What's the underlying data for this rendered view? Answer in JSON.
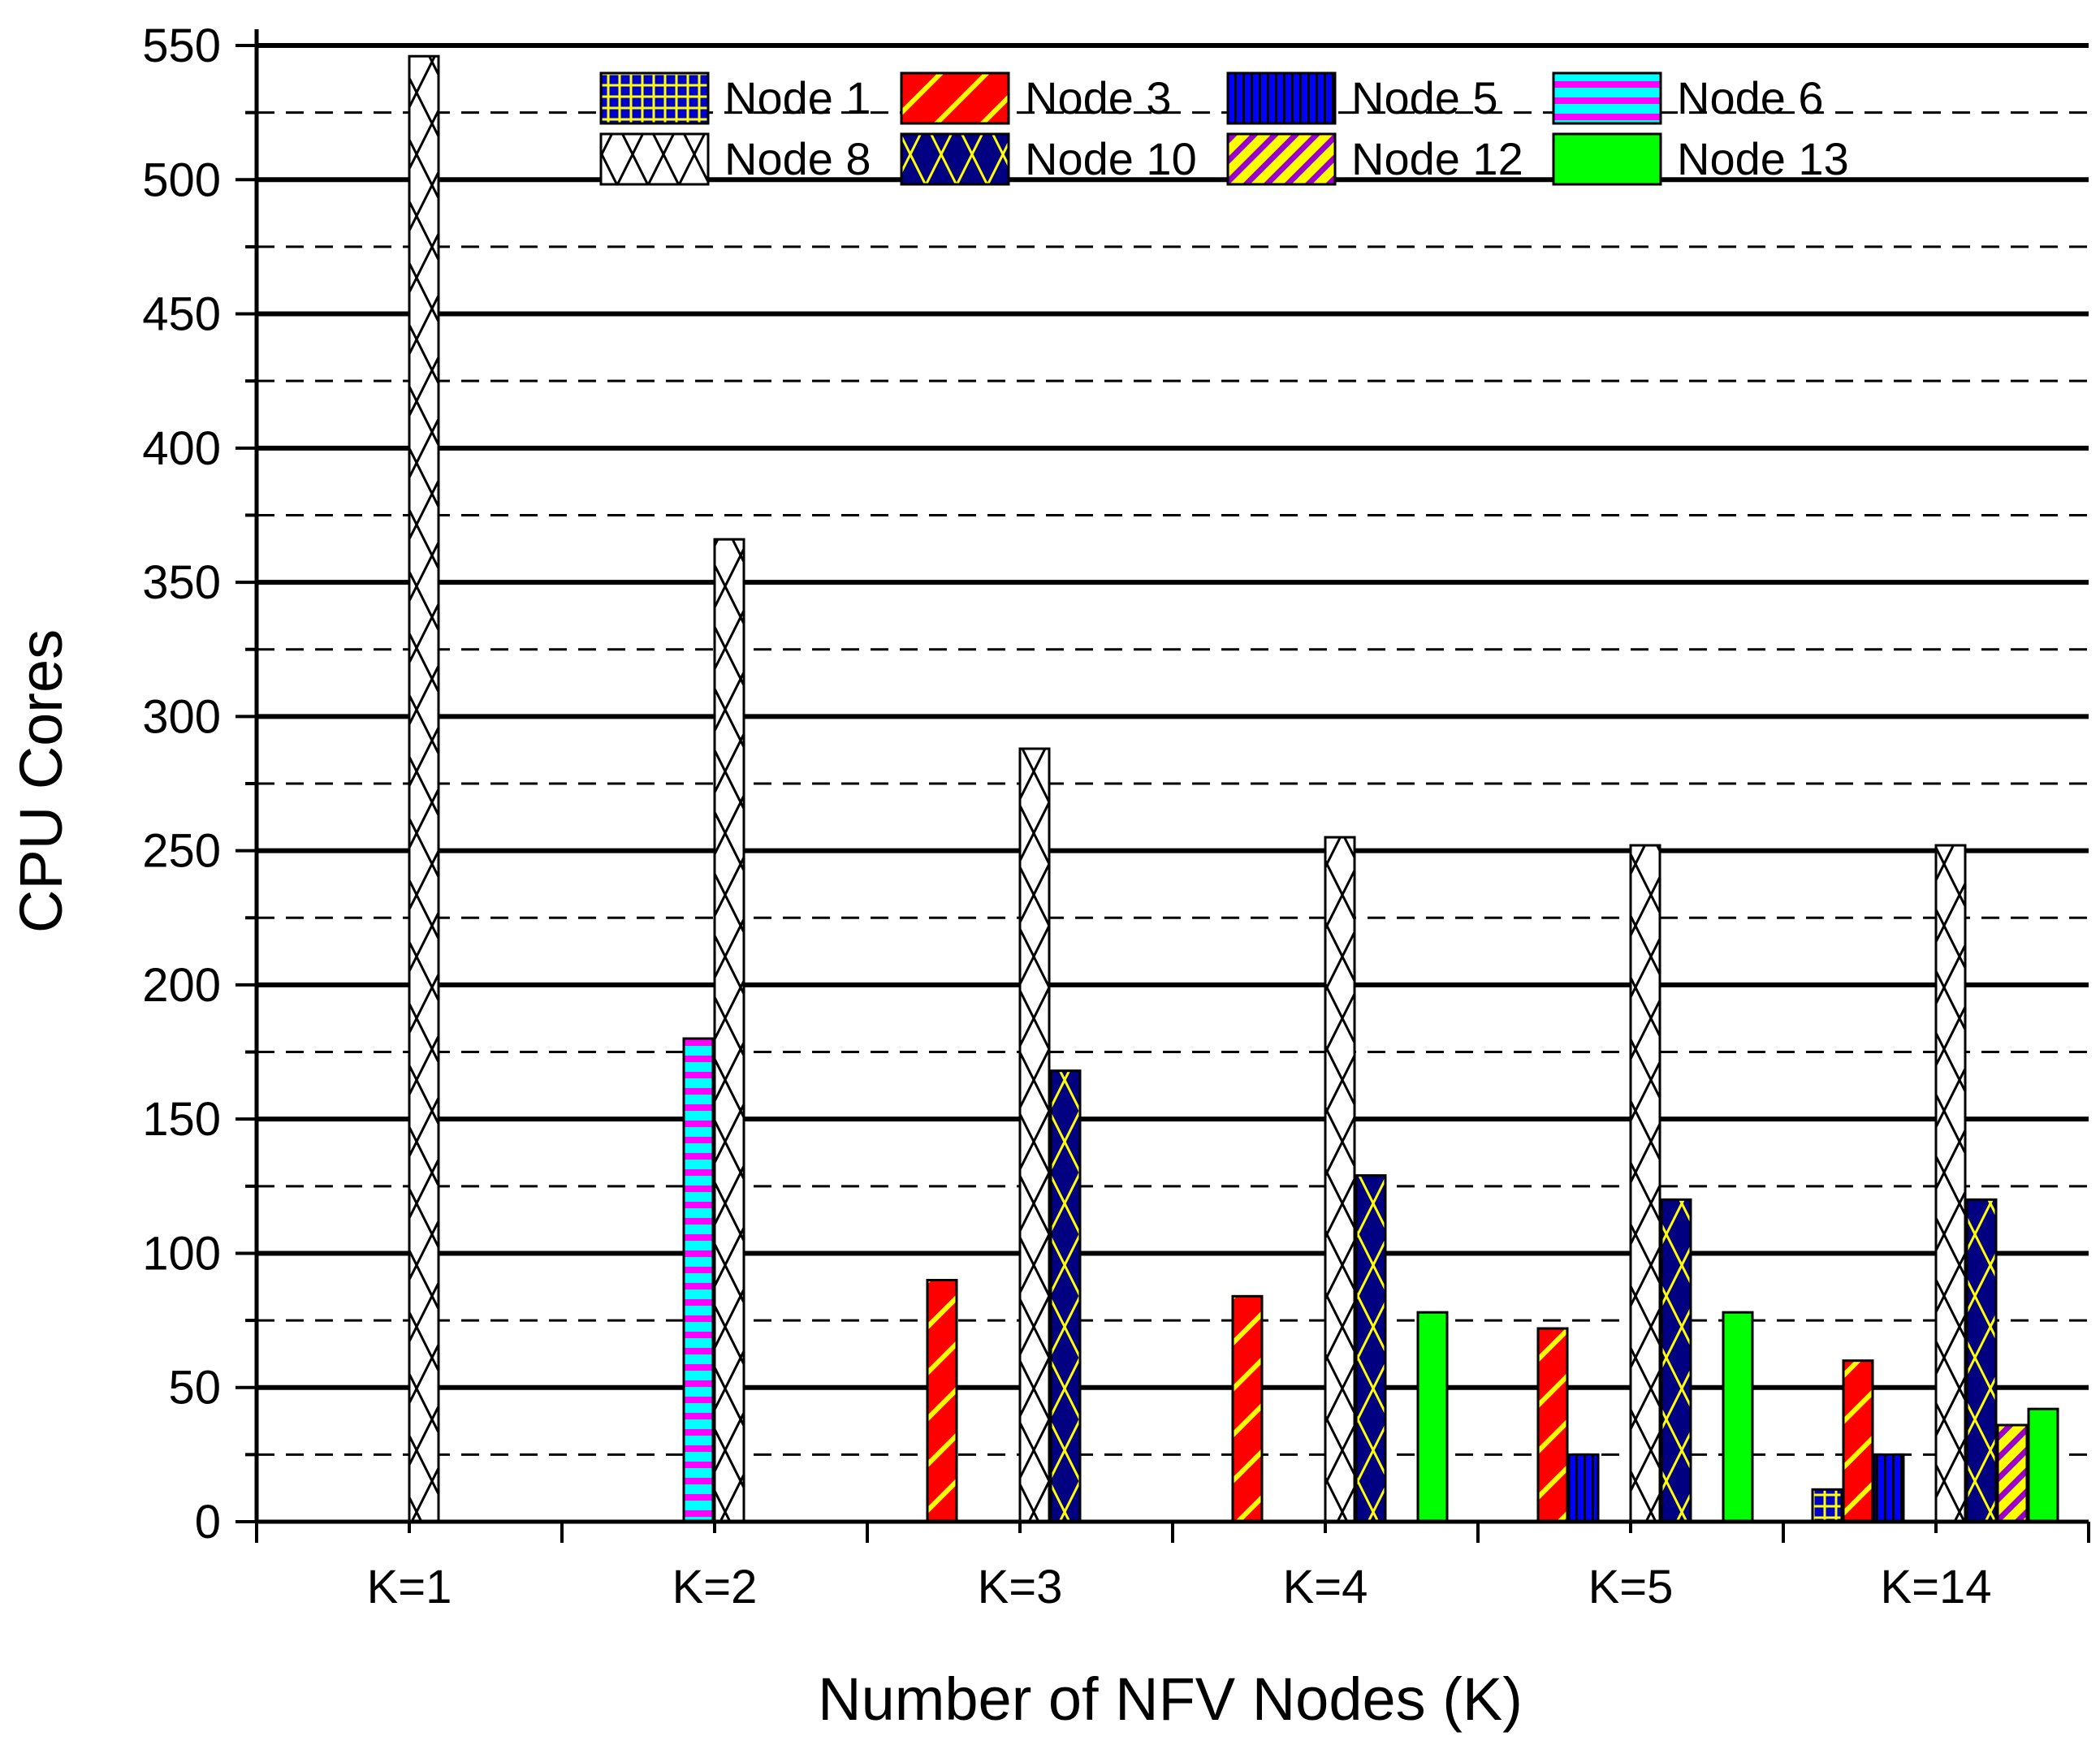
{
  "chart_data": {
    "type": "bar",
    "title": "",
    "xlabel": "Number of NFV Nodes (K)",
    "ylabel": "CPU Cores",
    "ylim": [
      0,
      550
    ],
    "y_major_ticks": [
      0,
      50,
      100,
      150,
      200,
      250,
      300,
      350,
      400,
      450,
      500,
      550
    ],
    "grid": "solid horizontal lines at major ticks, dashed at minor ticks",
    "legend_position": "top, 4 columns",
    "categories": [
      "K=1",
      "K=2",
      "K=3",
      "K=4",
      "K=5",
      "K=14"
    ],
    "series": [
      {
        "name": "Node 1",
        "pattern": "grid",
        "fill": "#0000cc",
        "stroke": "#ffff00",
        "values": [
          null,
          null,
          null,
          null,
          null,
          12
        ]
      },
      {
        "name": "Node 3",
        "pattern": "diagonal",
        "fill": "#ff0000",
        "stroke": "#ffff00",
        "values": [
          null,
          null,
          90,
          84,
          72,
          60
        ]
      },
      {
        "name": "Node 5",
        "pattern": "vertical",
        "fill": "#0000ff",
        "stroke": "#000000",
        "values": [
          null,
          null,
          null,
          null,
          25,
          25
        ]
      },
      {
        "name": "Node 6",
        "pattern": "horizontal",
        "fill": "#00ffff",
        "stroke": "#ff00ff",
        "values": [
          null,
          180,
          null,
          null,
          null,
          null
        ]
      },
      {
        "name": "Node 8",
        "pattern": "cross",
        "fill": "#ffffff",
        "stroke": "#000000",
        "values": [
          546,
          366,
          288,
          255,
          252,
          252
        ]
      },
      {
        "name": "Node 10",
        "pattern": "cross",
        "fill": "#000080",
        "stroke": "#ffff00",
        "values": [
          null,
          null,
          168,
          129,
          120,
          120
        ]
      },
      {
        "name": "Node 12",
        "pattern": "diagonal",
        "fill": "#ffff00",
        "stroke": "#9900cc",
        "values": [
          null,
          null,
          null,
          null,
          null,
          36
        ]
      },
      {
        "name": "Node 13",
        "pattern": "solid",
        "fill": "#00ff00",
        "stroke": "#00ff00",
        "values": [
          null,
          null,
          null,
          78,
          78,
          42
        ]
      }
    ]
  }
}
